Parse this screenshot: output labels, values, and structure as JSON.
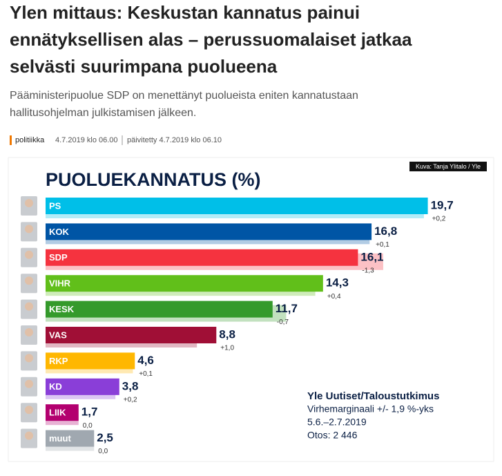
{
  "article": {
    "title_lines": [
      "Ylen mittaus: Keskustan kannatus painui",
      "ennätyksellisen alas – perussuomalaiset jatkaa",
      "selvästi suurimpana puolueena"
    ],
    "lead_lines": [
      "Pääministeripuolue SDP on menettänyt puolueista eniten kannatustaan",
      "hallitusohjelman julkistamisen jälkeen."
    ],
    "section": "politiikka",
    "published": "4.7.2019 klo 06.00",
    "updated": "päivitetty 4.7.2019 klo 06.10",
    "photo_credit": "Kuva: Tanja Ylitalo / Yle"
  },
  "chart_data": {
    "type": "bar",
    "orientation": "horizontal",
    "title": "PUOLUEKANNATUS (%)",
    "categories": [
      "PS",
      "KOK",
      "SDP",
      "VIHR",
      "KESK",
      "VAS",
      "RKP",
      "KD",
      "LIIK",
      "muut"
    ],
    "values": [
      19.7,
      16.8,
      16.1,
      14.3,
      11.7,
      8.8,
      4.6,
      3.8,
      1.7,
      2.5
    ],
    "value_labels": [
      "19,7",
      "16,8",
      "16,1",
      "14,3",
      "11,7",
      "8,8",
      "4,6",
      "3,8",
      "1,7",
      "2,5"
    ],
    "changes": [
      0.2,
      0.1,
      -1.3,
      0.4,
      -0.7,
      1.0,
      0.1,
      0.2,
      0.0,
      0.0
    ],
    "change_labels": [
      "+0,2",
      "+0,1",
      "-1,3",
      "+0,4",
      "-0,7",
      "+1,0",
      "+0,1",
      "+0,2",
      "0,0",
      "0,0"
    ],
    "colors": [
      "#00bfe8",
      "#0055a5",
      "#f5333f",
      "#61bf1a",
      "#349a2b",
      "#a00f36",
      "#ffb700",
      "#8a3ed8",
      "#b3006f",
      "#a0a8b0"
    ],
    "xlim": [
      0,
      20
    ],
    "source_lines": [
      "Yle Uutiset/Taloustutkimus",
      "Virhemarginaali +/- 1,9 %-yks",
      "5.6.–2.7.2019",
      "Otos: 2 446"
    ]
  }
}
